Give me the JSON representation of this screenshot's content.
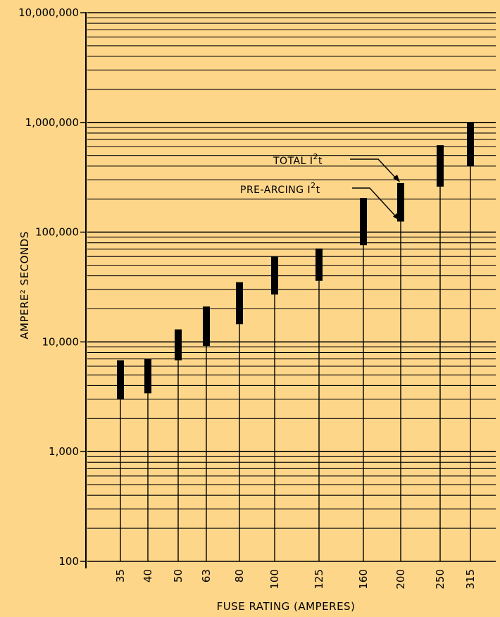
{
  "chart_data": {
    "type": "bar",
    "chart_style": "floating range bars (I²t bands) on log scale",
    "background_color": "#fed68a",
    "ink_color": "#000000",
    "xlabel": "FUSE RATING (AMPERES)",
    "ylabel": "AMPERE² SECONDS",
    "y_scale": "log",
    "ylim": [
      100,
      10000000
    ],
    "grid": true,
    "y_tick_labels": [
      "100",
      "1,000",
      "10,000",
      "100,000",
      "1,000,000",
      "10,000,000"
    ],
    "y_tick_values": [
      100,
      1000,
      10000,
      100000,
      1000000,
      10000000
    ],
    "categories": [
      "35",
      "40",
      "50",
      "63",
      "80",
      "100",
      "125",
      "160",
      "200",
      "250",
      "315"
    ],
    "series": [
      {
        "name": "PRE-ARCING I²t",
        "values": [
          3000,
          3400,
          6800,
          9200,
          14500,
          27000,
          36000,
          76000,
          125000,
          260000,
          400000
        ]
      },
      {
        "name": "TOTAL I²t",
        "values": [
          6800,
          7000,
          13000,
          21000,
          35000,
          60000,
          71000,
          205000,
          280000,
          620000,
          990000
        ]
      }
    ],
    "annotations": [
      {
        "text_main": "TOTAL  I",
        "sup": "2",
        "tail": "t",
        "points_to_category": "200",
        "points_to": "TOTAL I²t"
      },
      {
        "text_main": "PRE-ARCING I",
        "sup": "2",
        "tail": "t",
        "points_to_category": "200",
        "points_to": "PRE-ARCING I²t"
      }
    ]
  }
}
